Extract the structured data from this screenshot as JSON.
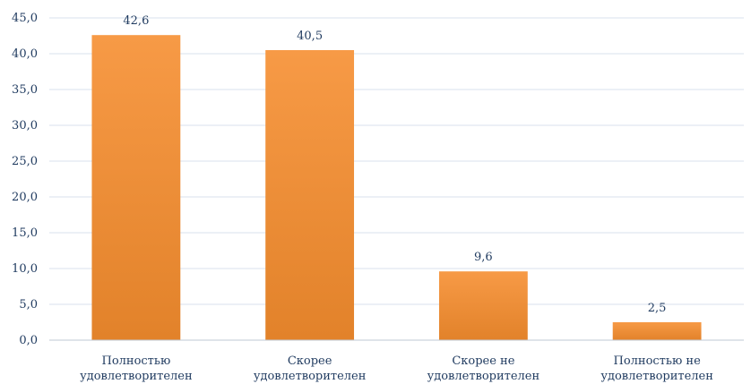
{
  "chart_data": {
    "type": "bar",
    "categories": [
      [
        "Полностью",
        "удовлетворителен"
      ],
      [
        "Скорее",
        "удовлетворителен"
      ],
      [
        "Скорее не",
        "удовлетворителен"
      ],
      [
        "Полностью не",
        "удовлетворителен"
      ]
    ],
    "values": [
      42.6,
      40.5,
      9.6,
      2.5
    ],
    "data_labels": [
      "42,6",
      "40,5",
      "9,6",
      "2,5"
    ],
    "y_ticks": [
      "0,0",
      "5,0",
      "10,0",
      "15,0",
      "20,0",
      "25,0",
      "30,0",
      "35,0",
      "40,0",
      "45,0"
    ],
    "ylim": [
      0,
      45
    ],
    "grid": true,
    "legend": "none",
    "title": "",
    "xlabel": "",
    "ylabel": "",
    "colors": {
      "bar_top": "#f79a46",
      "bar_bottom": "#e2822a",
      "grid": "#d9e2ee",
      "axis": "#bfc9d6",
      "text": "#1f3a5f"
    }
  }
}
